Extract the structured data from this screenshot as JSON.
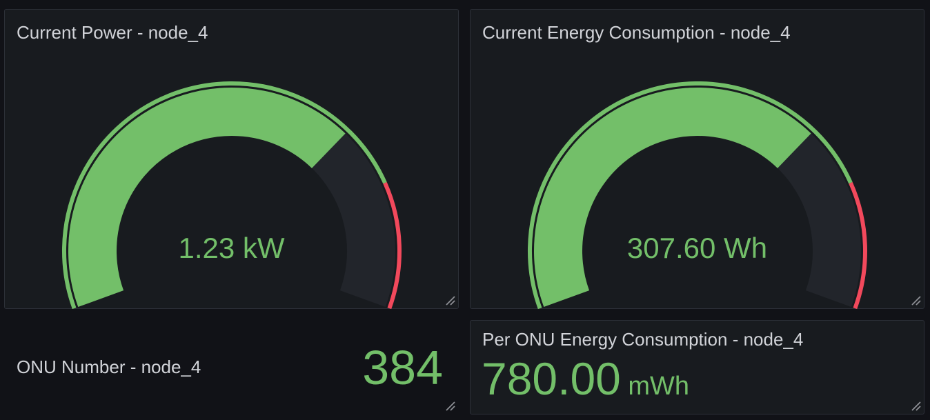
{
  "colors": {
    "background": "#111217",
    "panel": "#181b1f",
    "ok_green": "#73bf69",
    "threshold_red": "#f2495c",
    "track": "#22252b",
    "text": "#d1d3d8"
  },
  "panels": {
    "current_power": {
      "title": "Current Power - node_4",
      "value_text": "1.23 kW",
      "fill_fraction": 0.7,
      "threshold_fraction": 0.8
    },
    "current_energy": {
      "title": "Current Energy Consumption - node_4",
      "value_text": "307.60 Wh",
      "fill_fraction": 0.7,
      "threshold_fraction": 0.8
    },
    "onu_number": {
      "title": "ONU Number - node_4",
      "value_text": "384"
    },
    "per_onu_energy": {
      "title": "Per ONU Energy Consumption - node_4",
      "value_text": "780.00",
      "unit_text": "mWh"
    }
  },
  "icons": {
    "resize": "resize-handle-icon"
  }
}
